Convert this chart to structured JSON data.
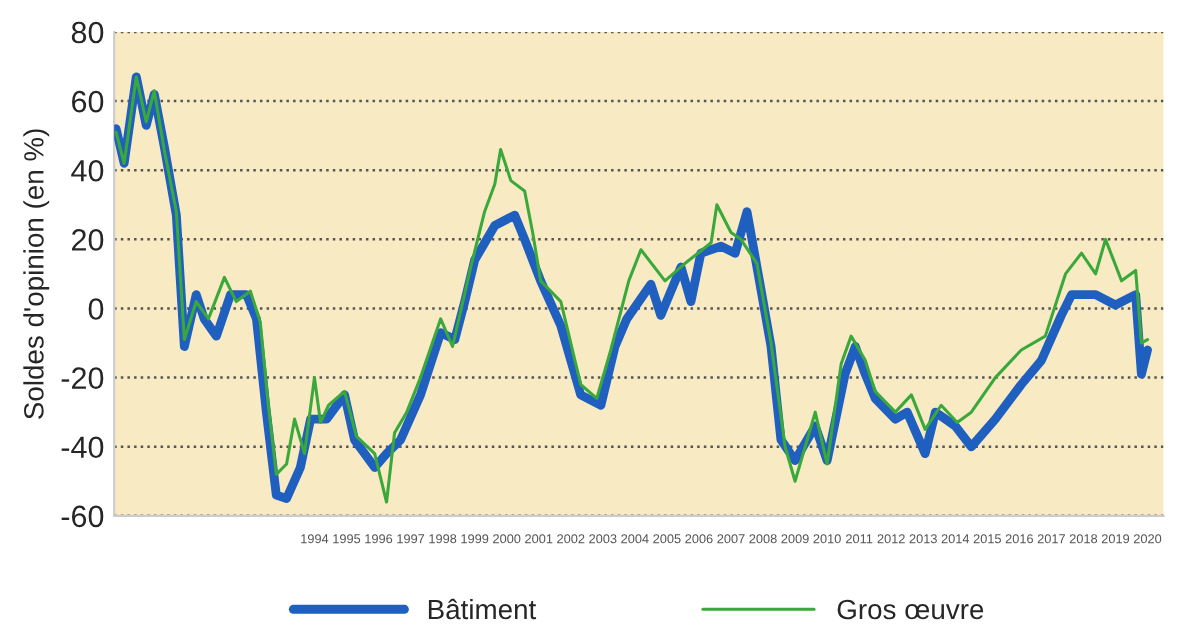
{
  "chart_data": {
    "type": "line",
    "ylabel": "Soldes d'opinion (en %)",
    "ylim": [
      -60,
      80
    ],
    "yticks": [
      -60,
      -40,
      -20,
      0,
      20,
      40,
      60,
      80
    ],
    "xlim": [
      1988.25,
      2021.0
    ],
    "xticks": [
      {
        "value": 1994.5,
        "label": "1994"
      },
      {
        "value": 1995.5,
        "label": "1995"
      },
      {
        "value": 1996.5,
        "label": "1996"
      },
      {
        "value": 1997.5,
        "label": "1997"
      },
      {
        "value": 1998.5,
        "label": "1998"
      },
      {
        "value": 1999.5,
        "label": "1999"
      },
      {
        "value": 2000.5,
        "label": "2000"
      },
      {
        "value": 2001.5,
        "label": "2001"
      },
      {
        "value": 2002.5,
        "label": "2002"
      },
      {
        "value": 2003.5,
        "label": "2003"
      },
      {
        "value": 2004.5,
        "label": "2004"
      },
      {
        "value": 2005.5,
        "label": "2005"
      },
      {
        "value": 2006.5,
        "label": "2006"
      },
      {
        "value": 2007.5,
        "label": "2007"
      },
      {
        "value": 2008.5,
        "label": "2008"
      },
      {
        "value": 2009.5,
        "label": "2009"
      },
      {
        "value": 2010.5,
        "label": "2010"
      },
      {
        "value": 2011.5,
        "label": "2011"
      },
      {
        "value": 2012.5,
        "label": "2012"
      },
      {
        "value": 2013.5,
        "label": "2013"
      },
      {
        "value": 2014.5,
        "label": "2014"
      },
      {
        "value": 2015.5,
        "label": "2015"
      },
      {
        "value": 2016.5,
        "label": "2016"
      },
      {
        "value": 2017.5,
        "label": "2017"
      },
      {
        "value": 2018.5,
        "label": "2018"
      },
      {
        "value": 2019.5,
        "label": "2019"
      },
      {
        "value": 2020.5,
        "label": "2020"
      }
    ],
    "grid": "y",
    "legend": "bottom",
    "line_style": "solid",
    "series": [
      {
        "name": "Bâtiment",
        "color": "#1f5fbf",
        "x": [
          1988.31,
          1988.56,
          1988.94,
          1989.25,
          1989.5,
          1989.81,
          1990.19,
          1990.44,
          1990.81,
          1991.06,
          1991.44,
          1991.88,
          1992.38,
          1992.69,
          1993.0,
          1993.31,
          1993.63,
          1994.06,
          1994.38,
          1994.88,
          1995.44,
          1995.75,
          1996.38,
          1996.75,
          1997.19,
          1997.81,
          1998.44,
          1998.88,
          1999.19,
          1999.5,
          2000.13,
          2000.75,
          2001.06,
          2001.56,
          2002.19,
          2002.81,
          2003.44,
          2003.88,
          2004.25,
          2005.0,
          2005.31,
          2005.94,
          2006.25,
          2006.56,
          2007.19,
          2007.63,
          2008.0,
          2008.31,
          2008.75,
          2009.06,
          2009.5,
          2010.13,
          2010.5,
          2011.06,
          2011.38,
          2011.69,
          2012.0,
          2012.63,
          2013.0,
          2013.56,
          2013.88,
          2014.5,
          2015.0,
          2015.75,
          2016.56,
          2017.19,
          2017.81,
          2018.13,
          2018.88,
          2019.5,
          2020.13,
          2020.31,
          2020.5
        ],
        "values": [
          52,
          42,
          67,
          53,
          62,
          47,
          27,
          -11,
          4,
          -3,
          -8,
          4,
          4,
          -3,
          -30,
          -54,
          -55,
          -46,
          -32,
          -32,
          -25,
          -38,
          -46,
          -42,
          -38,
          -25,
          -7,
          -9,
          2,
          14,
          24,
          27,
          20,
          8,
          -5,
          -25,
          -28,
          -11,
          -3,
          7,
          -2,
          12,
          2,
          16,
          18,
          16,
          28,
          12,
          -11,
          -38,
          -44,
          -34,
          -44,
          -19,
          -11,
          -19,
          -26,
          -32,
          -30,
          -42,
          -30,
          -34,
          -40,
          -32,
          -22,
          -15,
          -2,
          4,
          4,
          1,
          4,
          -19,
          -12
        ]
      },
      {
        "name": "Gros œuvre",
        "color": "#3aa83a",
        "x": [
          1988.31,
          1988.56,
          1988.94,
          1989.25,
          1989.5,
          1989.81,
          1990.19,
          1990.44,
          1990.81,
          1991.19,
          1991.69,
          1992.06,
          1992.5,
          1992.81,
          1993.06,
          1993.31,
          1993.63,
          1993.88,
          1994.19,
          1994.5,
          1994.69,
          1994.94,
          1995.44,
          1995.81,
          1996.38,
          1996.75,
          1997.0,
          1997.38,
          1997.81,
          1998.44,
          1998.81,
          1999.38,
          1999.81,
          2000.13,
          2000.31,
          2000.63,
          2001.06,
          2001.31,
          2001.56,
          2002.19,
          2002.81,
          2003.31,
          2003.75,
          2004.31,
          2004.69,
          2005.44,
          2006.06,
          2006.88,
          2007.06,
          2007.5,
          2007.81,
          2008.31,
          2008.75,
          2009.19,
          2009.5,
          2010.13,
          2010.5,
          2010.94,
          2011.25,
          2011.69,
          2012.0,
          2012.63,
          2013.13,
          2013.56,
          2014.06,
          2014.56,
          2015.0,
          2015.75,
          2016.56,
          2017.31,
          2017.94,
          2018.44,
          2018.88,
          2019.19,
          2019.69,
          2020.13,
          2020.31,
          2020.5
        ],
        "values": [
          51,
          42,
          67,
          54,
          63,
          46,
          28,
          -9,
          2,
          -3,
          9,
          2,
          5,
          -4,
          -28,
          -48,
          -45,
          -32,
          -42,
          -20,
          -33,
          -28,
          -24,
          -37,
          -42,
          -56,
          -36,
          -30,
          -20,
          -3,
          -11,
          12,
          28,
          36,
          46,
          37,
          34,
          22,
          8,
          2,
          -22,
          -26,
          -12,
          8,
          17,
          8,
          13,
          19,
          30,
          22,
          20,
          13,
          -10,
          -40,
          -50,
          -30,
          -45,
          -16,
          -8,
          -15,
          -24,
          -30,
          -25,
          -35,
          -28,
          -33,
          -30,
          -20,
          -12,
          -8,
          10,
          16,
          10,
          20,
          8,
          11,
          -10,
          -9
        ]
      }
    ]
  }
}
